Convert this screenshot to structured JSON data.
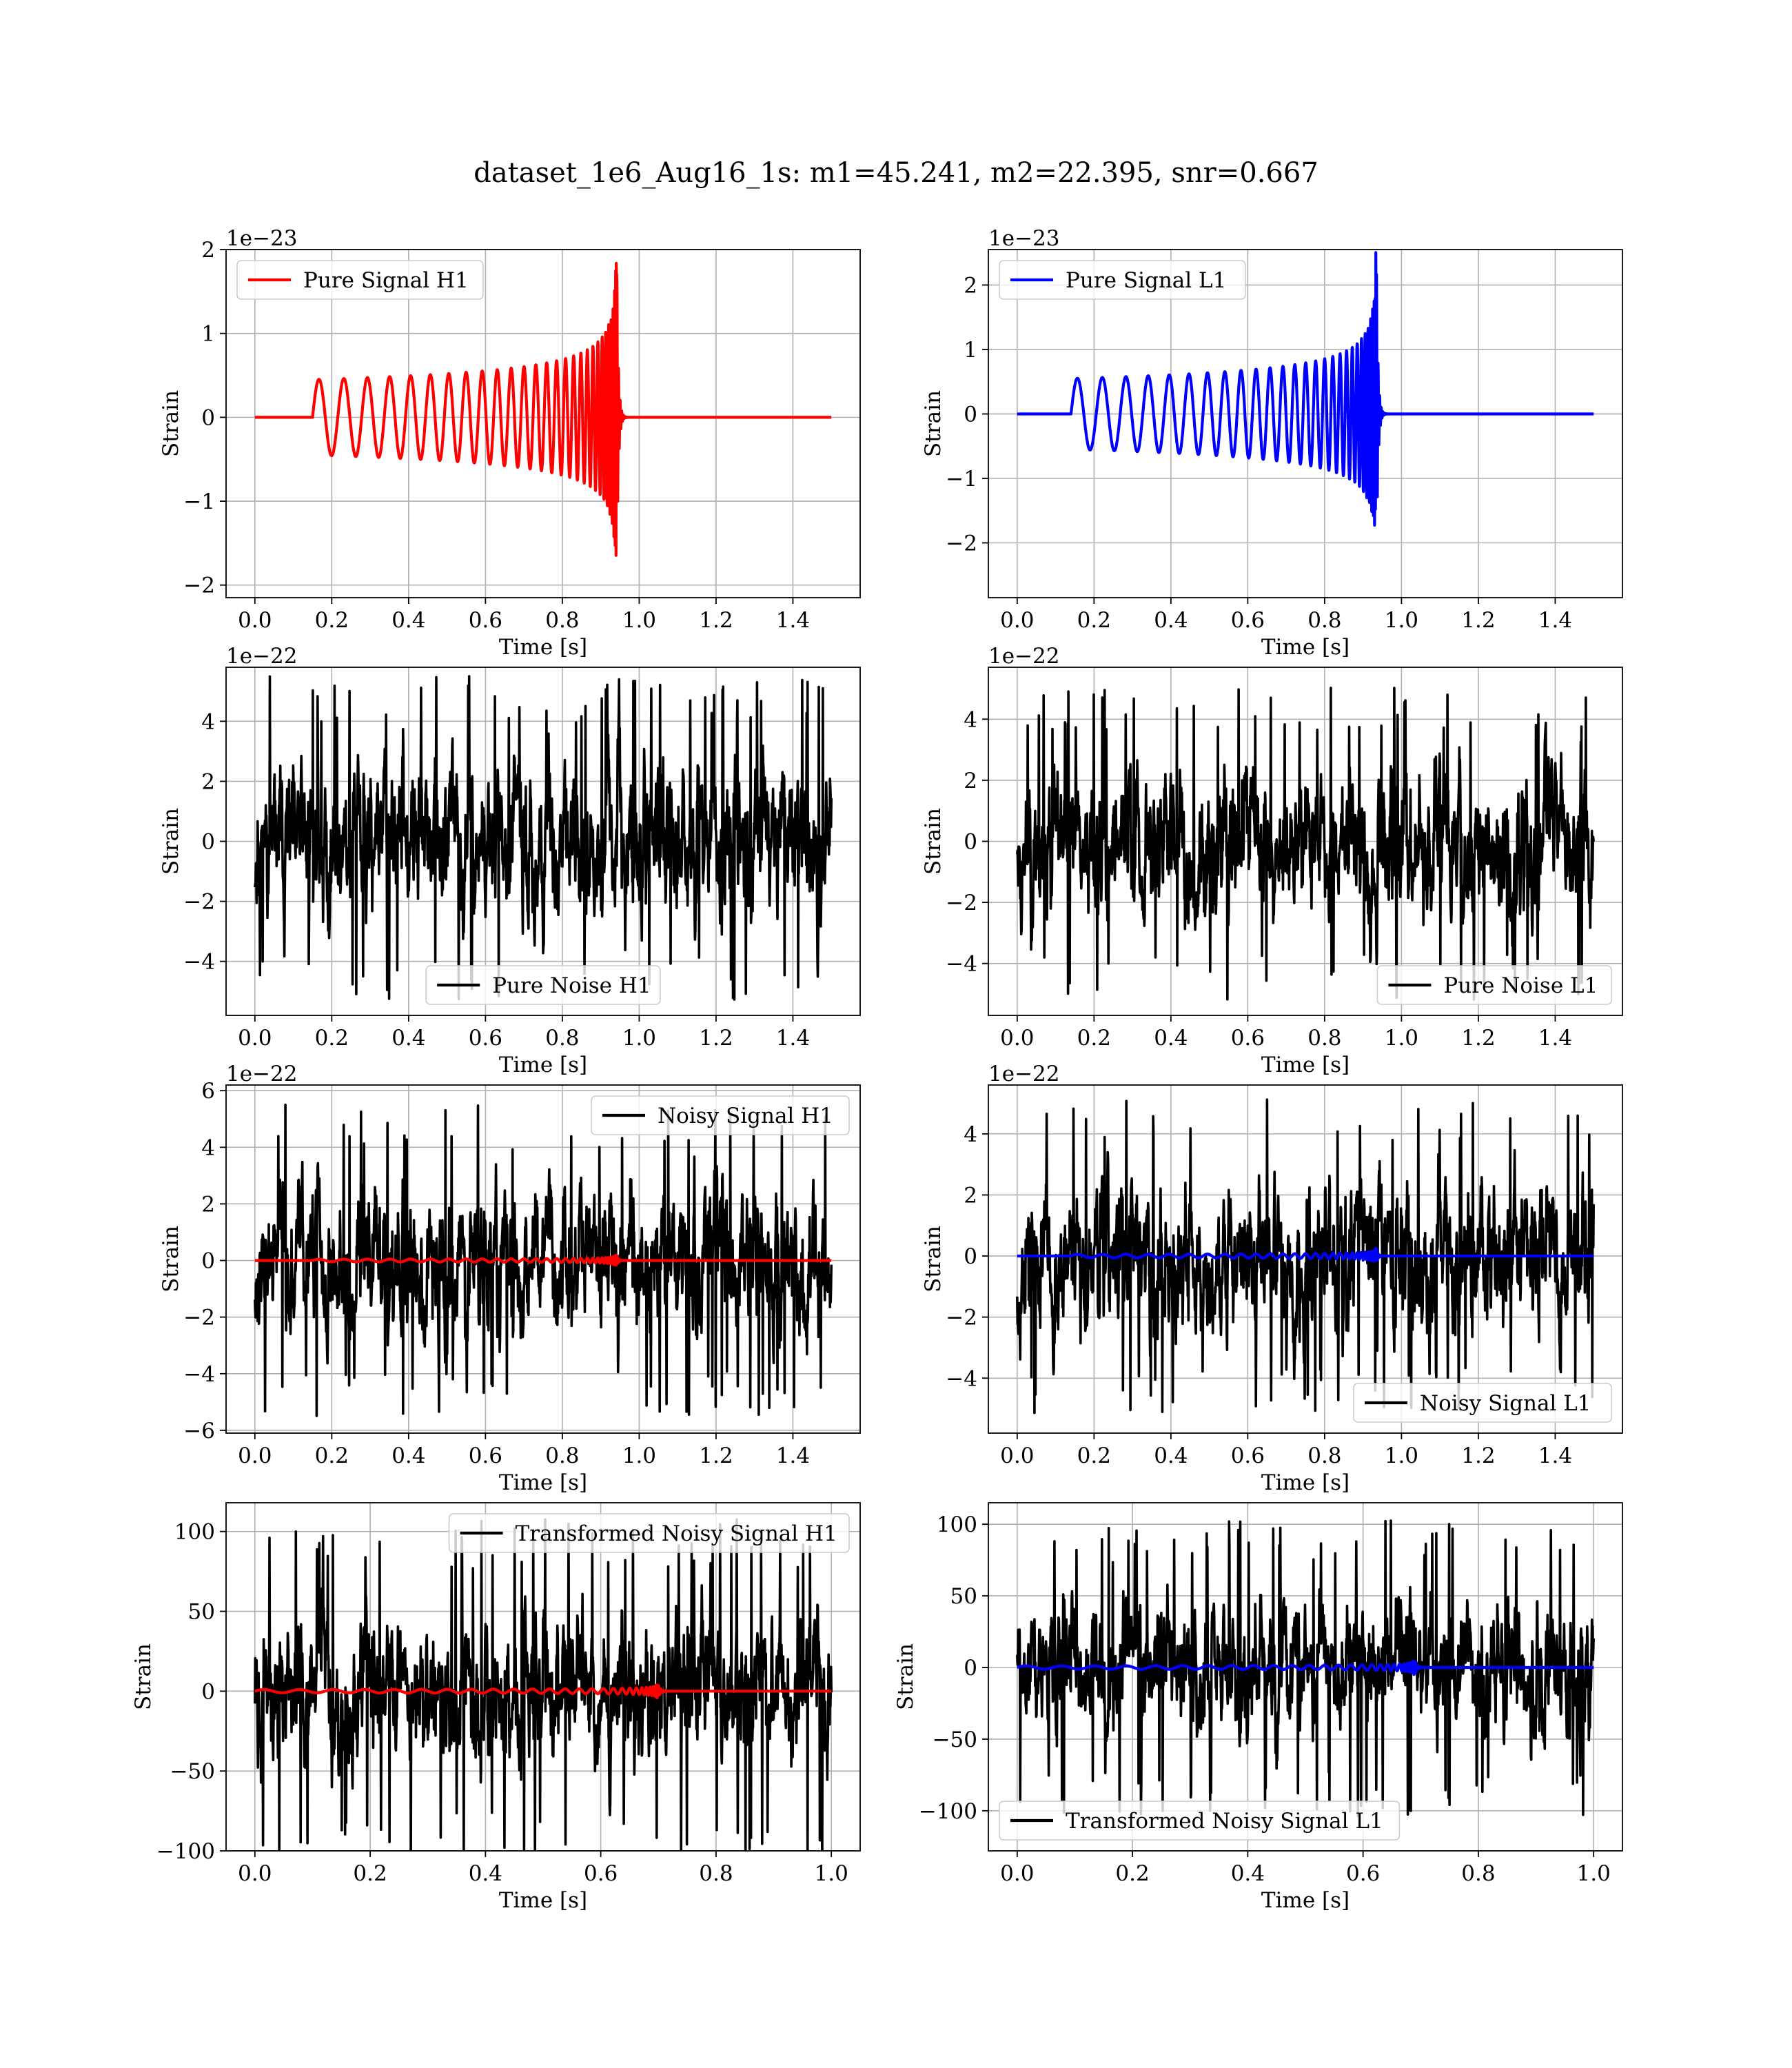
{
  "figure": {
    "suptitle": "dataset_1e6_Aug16_1s: m1=45.241, m2=22.395, snr=0.667"
  },
  "colors": {
    "signal_h1": "#ff0000",
    "signal_l1": "#0000ff",
    "noise": "#000000",
    "grid": "#b0b0b0"
  },
  "chart_data": [
    {
      "id": "h1-pure-signal",
      "type": "line",
      "xlabel": "Time [s]",
      "ylabel": "Strain",
      "offset_text": "1e−23",
      "xlim": [
        -0.075,
        1.575
      ],
      "ylim": [
        -2.15,
        2.0
      ],
      "xticks": [
        0.0,
        0.2,
        0.4,
        0.6,
        0.8,
        1.0,
        1.2,
        1.4
      ],
      "xtick_labels": [
        "0.0",
        "0.2",
        "0.4",
        "0.6",
        "0.8",
        "1.0",
        "1.2",
        "1.4"
      ],
      "yticks": [
        -2,
        -1,
        0,
        1,
        2
      ],
      "ytick_labels": [
        "−2",
        "−1",
        "0",
        "1",
        "2"
      ],
      "legend_loc": "upper-left",
      "series": [
        {
          "name": "Pure Signal H1",
          "color": "#ff0000",
          "kind": "chirp",
          "t_start": 0.15,
          "t_merge": 0.942,
          "t_end": 1.5,
          "amp_start": 0.45,
          "amp_peak": 1.95,
          "amp_scale": 1,
          "t_offset": 0,
          "in_legend": true
        }
      ]
    },
    {
      "id": "l1-pure-signal",
      "type": "line",
      "xlabel": "Time [s]",
      "ylabel": "Strain",
      "offset_text": "1e−23",
      "xlim": [
        -0.075,
        1.575
      ],
      "ylim": [
        -2.85,
        2.55
      ],
      "xticks": [
        0.0,
        0.2,
        0.4,
        0.6,
        0.8,
        1.0,
        1.2,
        1.4
      ],
      "xtick_labels": [
        "0.0",
        "0.2",
        "0.4",
        "0.6",
        "0.8",
        "1.0",
        "1.2",
        "1.4"
      ],
      "yticks": [
        -2,
        -1,
        0,
        1,
        2
      ],
      "ytick_labels": [
        "−2",
        "−1",
        "0",
        "1",
        "2"
      ],
      "legend_loc": "upper-left",
      "series": [
        {
          "name": "Pure Signal L1",
          "color": "#0000ff",
          "kind": "chirp",
          "t_start": 0.14,
          "t_merge": 0.935,
          "t_end": 1.5,
          "amp_start": 0.55,
          "amp_peak": 2.55,
          "amp_scale": 1,
          "t_offset": 0,
          "in_legend": true
        }
      ]
    },
    {
      "id": "h1-pure-noise",
      "type": "line",
      "xlabel": "Time [s]",
      "ylabel": "Strain",
      "offset_text": "1e−22",
      "xlim": [
        -0.075,
        1.575
      ],
      "ylim": [
        -5.8,
        5.8
      ],
      "xticks": [
        0.0,
        0.2,
        0.4,
        0.6,
        0.8,
        1.0,
        1.2,
        1.4
      ],
      "xtick_labels": [
        "0.0",
        "0.2",
        "0.4",
        "0.6",
        "0.8",
        "1.0",
        "1.2",
        "1.4"
      ],
      "yticks": [
        -4,
        -2,
        0,
        2,
        4
      ],
      "ytick_labels": [
        "−4",
        "−2",
        "0",
        "2",
        "4"
      ],
      "legend_loc": "lower-center",
      "series": [
        {
          "name": "Pure Noise H1",
          "color": "#000000",
          "kind": "noise",
          "t_start": 0.0,
          "t_end": 1.5,
          "amp": 1.45,
          "peak": 5.5,
          "seed": 11,
          "in_legend": true
        }
      ]
    },
    {
      "id": "l1-pure-noise",
      "type": "line",
      "xlabel": "Time [s]",
      "ylabel": "Strain",
      "offset_text": "1e−22",
      "xlim": [
        -0.075,
        1.575
      ],
      "ylim": [
        -5.7,
        5.7
      ],
      "xticks": [
        0.0,
        0.2,
        0.4,
        0.6,
        0.8,
        1.0,
        1.2,
        1.4
      ],
      "xtick_labels": [
        "0.0",
        "0.2",
        "0.4",
        "0.6",
        "0.8",
        "1.0",
        "1.2",
        "1.4"
      ],
      "yticks": [
        -4,
        -2,
        0,
        2,
        4
      ],
      "ytick_labels": [
        "−4",
        "−2",
        "0",
        "2",
        "4"
      ],
      "legend_loc": "lower-right",
      "series": [
        {
          "name": "Pure Noise L1",
          "color": "#000000",
          "kind": "noise",
          "t_start": 0.0,
          "t_end": 1.5,
          "amp": 1.4,
          "peak": 5.2,
          "seed": 23,
          "in_legend": true
        }
      ]
    },
    {
      "id": "h1-noisy-signal",
      "type": "line",
      "xlabel": "Time [s]",
      "ylabel": "Strain",
      "offset_text": "1e−22",
      "xlim": [
        -0.075,
        1.575
      ],
      "ylim": [
        -6.1,
        6.2
      ],
      "xticks": [
        0.0,
        0.2,
        0.4,
        0.6,
        0.8,
        1.0,
        1.2,
        1.4
      ],
      "xtick_labels": [
        "0.0",
        "0.2",
        "0.4",
        "0.6",
        "0.8",
        "1.0",
        "1.2",
        "1.4"
      ],
      "yticks": [
        -6,
        -4,
        -2,
        0,
        2,
        4,
        6
      ],
      "ytick_labels": [
        "−6",
        "−4",
        "−2",
        "0",
        "2",
        "4",
        "6"
      ],
      "legend_loc": "upper-right",
      "series": [
        {
          "name": "Noisy Signal H1",
          "color": "#000000",
          "kind": "noise",
          "t_start": 0.0,
          "t_end": 1.5,
          "amp": 1.5,
          "peak": 5.6,
          "seed": 37,
          "in_legend": true
        },
        {
          "name": "",
          "color": "#ff0000",
          "kind": "chirp",
          "t_start": 0.15,
          "t_merge": 0.942,
          "t_end": 1.5,
          "amp_start": 0.045,
          "amp_peak": 0.2,
          "amp_scale": 1,
          "t_offset": 0,
          "in_legend": false
        }
      ]
    },
    {
      "id": "l1-noisy-signal",
      "type": "line",
      "xlabel": "Time [s]",
      "ylabel": "Strain",
      "offset_text": "1e−22",
      "xlim": [
        -0.075,
        1.575
      ],
      "ylim": [
        -5.8,
        5.6
      ],
      "xticks": [
        0.0,
        0.2,
        0.4,
        0.6,
        0.8,
        1.0,
        1.2,
        1.4
      ],
      "xtick_labels": [
        "0.0",
        "0.2",
        "0.4",
        "0.6",
        "0.8",
        "1.0",
        "1.2",
        "1.4"
      ],
      "yticks": [
        -4,
        -2,
        0,
        2,
        4
      ],
      "ytick_labels": [
        "−4",
        "−2",
        "0",
        "2",
        "4"
      ],
      "legend_loc": "lower-right",
      "series": [
        {
          "name": "Noisy Signal L1",
          "color": "#000000",
          "kind": "noise",
          "t_start": 0.0,
          "t_end": 1.5,
          "amp": 1.45,
          "peak": 5.2,
          "seed": 53,
          "in_legend": true
        },
        {
          "name": "",
          "color": "#0000ff",
          "kind": "chirp",
          "t_start": 0.14,
          "t_merge": 0.935,
          "t_end": 1.5,
          "amp_start": 0.055,
          "amp_peak": 0.26,
          "amp_scale": 1,
          "t_offset": 0,
          "in_legend": false
        }
      ]
    },
    {
      "id": "h1-transformed-noisy-signal",
      "type": "line",
      "xlabel": "Time [s]",
      "ylabel": "Strain",
      "offset_text": "",
      "xlim": [
        -0.05,
        1.05
      ],
      "ylim": [
        -100,
        118
      ],
      "xticks": [
        0.0,
        0.2,
        0.4,
        0.6,
        0.8,
        1.0
      ],
      "xtick_labels": [
        "0.0",
        "0.2",
        "0.4",
        "0.6",
        "0.8",
        "1.0"
      ],
      "yticks": [
        -100,
        -50,
        0,
        50,
        100
      ],
      "ytick_labels": [
        "−100",
        "−50",
        "0",
        "50",
        "100"
      ],
      "legend_loc": "upper-right",
      "series": [
        {
          "name": "Transformed Noisy Signal H1",
          "color": "#000000",
          "kind": "noise",
          "t_start": 0.0,
          "t_end": 1.0,
          "amp": 27,
          "peak": 108,
          "seed": 71,
          "in_legend": true
        },
        {
          "name": "",
          "color": "#ff0000",
          "kind": "chirp",
          "t_start": 0.0,
          "t_merge": 0.7,
          "t_end": 1.0,
          "amp_start": 1.0,
          "amp_peak": 4.5,
          "amp_scale": 1,
          "t_offset": 0,
          "in_legend": false
        }
      ]
    },
    {
      "id": "l1-transformed-noisy-signal",
      "type": "line",
      "xlabel": "Time [s]",
      "ylabel": "Strain",
      "offset_text": "",
      "xlim": [
        -0.05,
        1.05
      ],
      "ylim": [
        -128,
        115
      ],
      "xticks": [
        0.0,
        0.2,
        0.4,
        0.6,
        0.8,
        1.0
      ],
      "xtick_labels": [
        "0.0",
        "0.2",
        "0.4",
        "0.6",
        "0.8",
        "1.0"
      ],
      "yticks": [
        -100,
        -50,
        0,
        50,
        100
      ],
      "ytick_labels": [
        "−100",
        "−50",
        "0",
        "50",
        "100"
      ],
      "legend_loc": "lower-left",
      "series": [
        {
          "name": "Transformed Noisy Signal L1",
          "color": "#000000",
          "kind": "noise",
          "t_start": 0.0,
          "t_end": 1.0,
          "amp": 26,
          "peak": 104,
          "seed": 89,
          "in_legend": true
        },
        {
          "name": "",
          "color": "#0000ff",
          "kind": "chirp",
          "t_start": 0.0,
          "t_merge": 0.69,
          "t_end": 1.0,
          "amp_start": 1.1,
          "amp_peak": 5.0,
          "amp_scale": 1,
          "t_offset": 0,
          "in_legend": false
        }
      ]
    }
  ]
}
